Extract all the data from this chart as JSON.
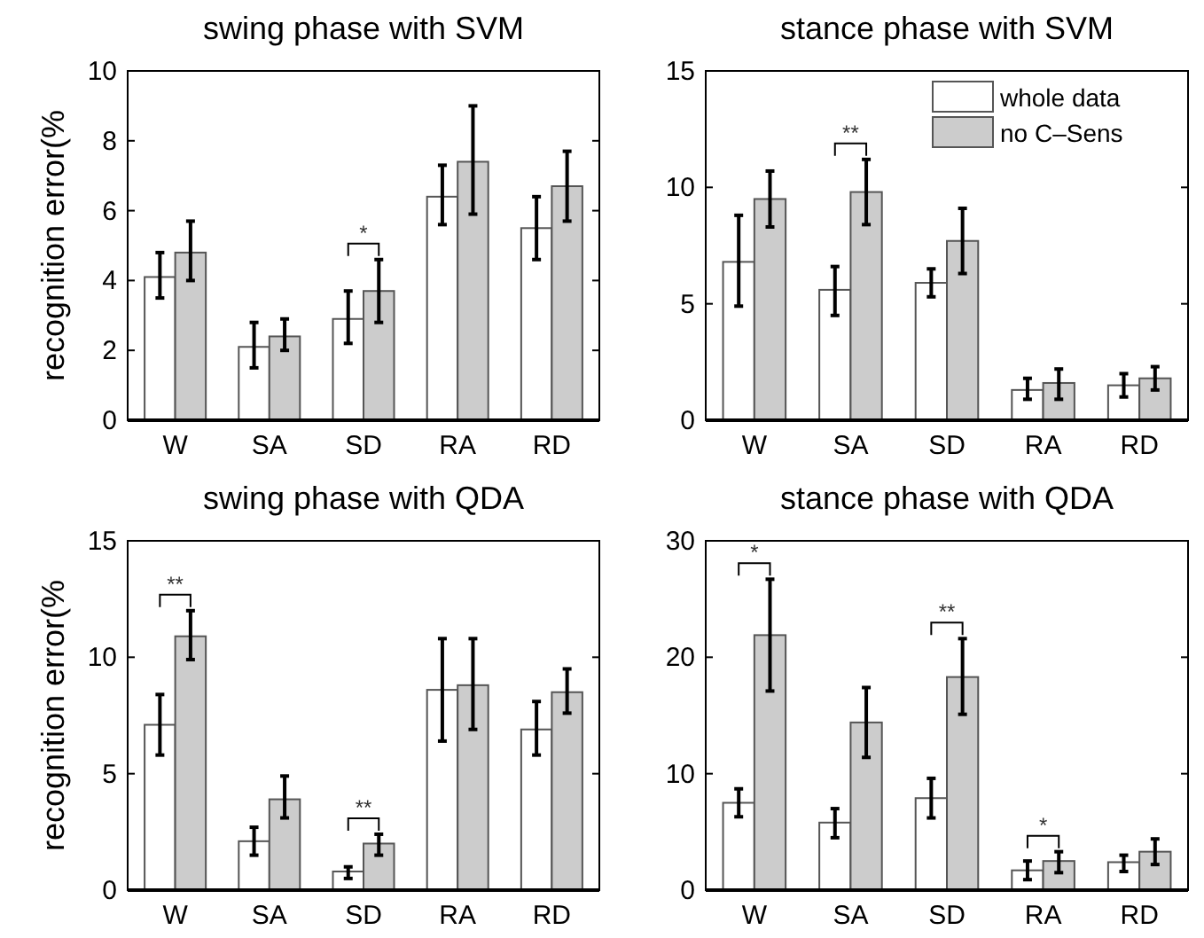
{
  "chart_data": [
    {
      "type": "bar",
      "title": "swing phase with SVM",
      "ylabel": "recognition error(%",
      "categories": [
        "W",
        "SA",
        "SD",
        "RA",
        "RD"
      ],
      "ylim": [
        0,
        10
      ],
      "yticks": [
        0,
        2,
        4,
        6,
        8,
        10
      ],
      "annotations": [
        "*"
      ],
      "series": [
        {
          "color": "#ffffff",
          "values": [
            4.1,
            2.1,
            2.9,
            6.4,
            5.5
          ],
          "errors": [
            [
              3.5,
              4.8
            ],
            [
              1.5,
              2.8
            ],
            [
              2.2,
              3.7
            ],
            [
              5.6,
              7.3
            ],
            [
              4.6,
              6.4
            ]
          ]
        },
        {
          "color": "#cccccc",
          "values": [
            4.8,
            2.4,
            3.7,
            7.4,
            6.7
          ],
          "errors": [
            [
              4.0,
              5.7
            ],
            [
              2.0,
              2.9
            ],
            [
              2.8,
              4.6
            ],
            [
              5.9,
              9.0
            ],
            [
              5.7,
              7.7
            ]
          ]
        }
      ]
    },
    {
      "type": "bar",
      "title": "stance phase with SVM",
      "categories": [
        "W",
        "SA",
        "SD",
        "RA",
        "RD"
      ],
      "ylim": [
        0,
        15
      ],
      "yticks": [
        0,
        5,
        10,
        15
      ],
      "legend": "top right",
      "annotations": [
        "**"
      ],
      "series": [
        {
          "name": "whole data",
          "color": "#ffffff",
          "values": [
            6.8,
            5.6,
            5.9,
            1.3,
            1.5
          ],
          "errors": [
            [
              4.9,
              8.8
            ],
            [
              4.5,
              6.6
            ],
            [
              5.3,
              6.5
            ],
            [
              0.9,
              1.8
            ],
            [
              1.0,
              2.0
            ]
          ]
        },
        {
          "name": "no C–Sens",
          "color": "#cccccc",
          "values": [
            9.5,
            9.8,
            7.7,
            1.6,
            1.8
          ],
          "errors": [
            [
              8.3,
              10.7
            ],
            [
              8.4,
              11.2
            ],
            [
              6.3,
              9.1
            ],
            [
              0.9,
              2.2
            ],
            [
              1.3,
              2.3
            ]
          ]
        }
      ]
    },
    {
      "type": "bar",
      "title": "swing phase with QDA",
      "ylabel": "recognition error(%",
      "categories": [
        "W",
        "SA",
        "SD",
        "RA",
        "RD"
      ],
      "ylim": [
        0,
        15
      ],
      "yticks": [
        0,
        5,
        10,
        15
      ],
      "annotations": [
        "**",
        "**"
      ],
      "series": [
        {
          "color": "#ffffff",
          "values": [
            7.1,
            2.1,
            0.8,
            8.6,
            6.9
          ],
          "errors": [
            [
              5.8,
              8.4
            ],
            [
              1.5,
              2.7
            ],
            [
              0.5,
              1.0
            ],
            [
              6.4,
              10.8
            ],
            [
              5.8,
              8.1
            ]
          ]
        },
        {
          "color": "#cccccc",
          "values": [
            10.9,
            3.9,
            2.0,
            8.8,
            8.5
          ],
          "errors": [
            [
              9.9,
              12.0
            ],
            [
              3.1,
              4.9
            ],
            [
              1.5,
              2.4
            ],
            [
              6.9,
              10.8
            ],
            [
              7.6,
              9.5
            ]
          ]
        }
      ]
    },
    {
      "type": "bar",
      "title": "stance phase with QDA",
      "categories": [
        "W",
        "SA",
        "SD",
        "RA",
        "RD"
      ],
      "ylim": [
        0,
        30
      ],
      "yticks": [
        0,
        10,
        20,
        30
      ],
      "annotations": [
        "*",
        "**",
        "*"
      ],
      "series": [
        {
          "color": "#ffffff",
          "values": [
            7.5,
            5.8,
            7.9,
            1.7,
            2.4
          ],
          "errors": [
            [
              6.3,
              8.7
            ],
            [
              4.5,
              7.0
            ],
            [
              6.2,
              9.6
            ],
            [
              0.9,
              2.5
            ],
            [
              1.6,
              3.0
            ]
          ]
        },
        {
          "color": "#cccccc",
          "values": [
            21.9,
            14.4,
            18.3,
            2.5,
            3.3
          ],
          "errors": [
            [
              17.1,
              26.7
            ],
            [
              11.4,
              17.4
            ],
            [
              15.1,
              21.6
            ],
            [
              1.5,
              3.3
            ],
            [
              2.2,
              4.4
            ]
          ]
        }
      ]
    }
  ]
}
